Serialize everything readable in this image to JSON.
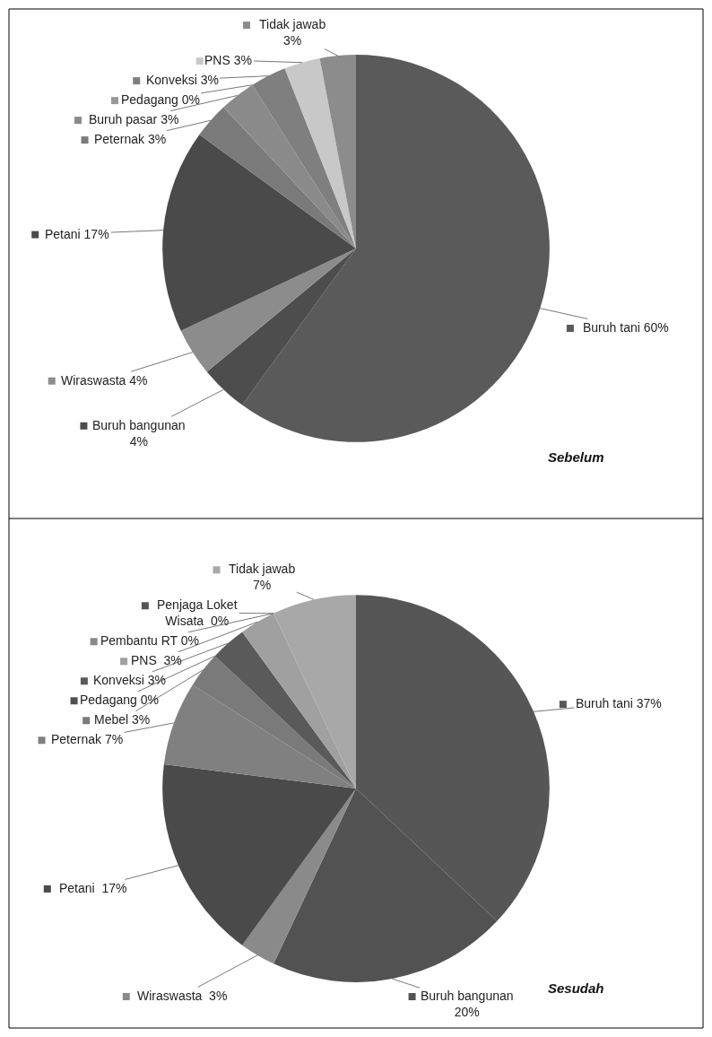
{
  "chart_data": [
    {
      "type": "pie",
      "title": "Sebelum",
      "legend": "left",
      "categories": [
        "Buruh tani 60%",
        "Buruh bangunan\n4%",
        "Wiraswasta 4%",
        "Petani 17%",
        "Peternak 3%",
        "Buruh pasar 3%",
        "Pedagang 0%",
        "Konveksi 3%",
        "PNS 3%",
        "Tidak jawab\n3%"
      ],
      "values": [
        60,
        4,
        4,
        17,
        3,
        3,
        0,
        3,
        3,
        3
      ],
      "colors": [
        "#5a5a5a",
        "#4d4d4d",
        "#8c8c8c",
        "#4a4a4a",
        "#7a7a7a",
        "#8a8a8a",
        "#999999",
        "#7f7f7f",
        "#c8c8c8",
        "#8c8c8c"
      ]
    },
    {
      "type": "pie",
      "title": "Sesudah",
      "legend": "left",
      "categories": [
        "Buruh tani 37%",
        "Buruh bangunan\n20%",
        "Wiraswasta  3%",
        "Petani  17%",
        "Peternak 7%",
        "Mebel 3%",
        "Pedagang 0%",
        "Konveksi 3%",
        "PNS  3%",
        "Penjaga Loket\nWisata  0%",
        "Pembantu RT 0%",
        "Tidak jawab\n7%"
      ],
      "values": [
        37,
        20,
        3,
        17,
        7,
        3,
        0,
        3,
        3,
        0,
        0,
        7
      ],
      "colors": [
        "#565656",
        "#525252",
        "#8a8a8a",
        "#4a4a4a",
        "#808080",
        "#7a7a7a",
        "#505050",
        "#5a5a5a",
        "#a0a0a0",
        "#555555",
        "#888888",
        "#a8a8a8"
      ]
    }
  ]
}
